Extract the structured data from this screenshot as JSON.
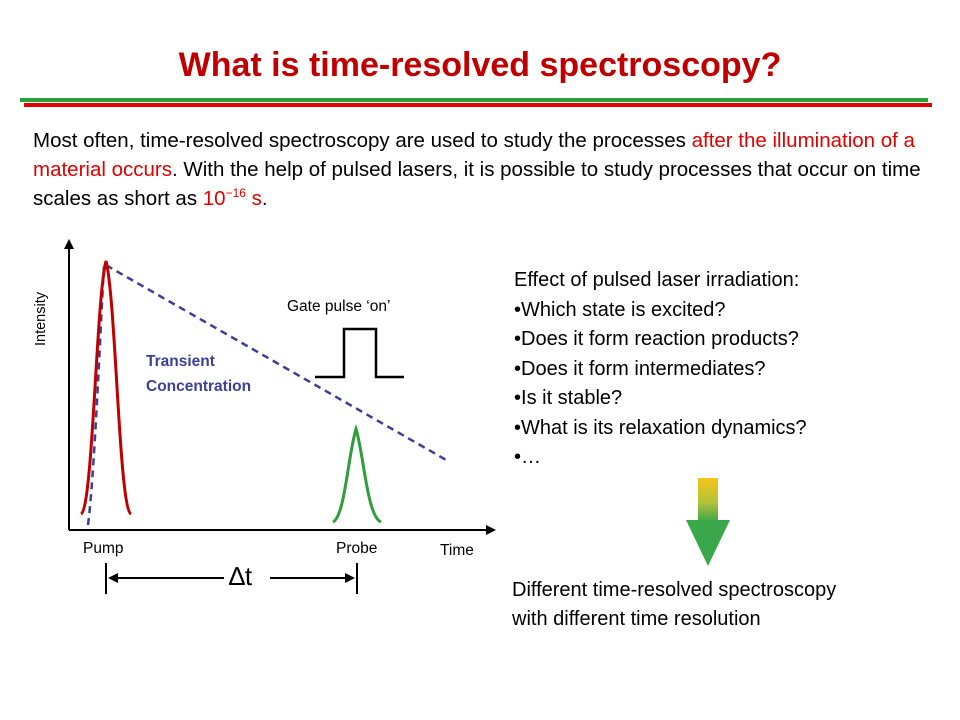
{
  "slide": {
    "title": "What is time-resolved spectroscopy?",
    "intro": {
      "part1": "Most often, time-resolved spectroscopy are used to study the processes ",
      "highlight1": "after the illumination of a material occurs",
      "part2": ". With the help of pulsed lasers, it is possible to study processes that occur on time scales as short as ",
      "exponent_base": "10",
      "exponent": "−16",
      "unit": " s",
      "end": "."
    }
  },
  "diagram": {
    "y_axis_label": "Intensity",
    "x_axis_label": "Time",
    "pump_label": "Pump",
    "probe_label": "Probe",
    "gate_label": "Gate pulse ‘on’",
    "transient_label_line1": "Transient",
    "transient_label_line2": "Concentration",
    "delay_label": "∆t",
    "colors": {
      "pump": "#c00000",
      "probe": "#2e9e3c",
      "transient": "#3b3f98",
      "arrow_top": "#f5c518",
      "arrow_bottom": "#3aa84a"
    }
  },
  "effects": {
    "heading": "Effect of pulsed laser irradiation:",
    "items": [
      "Which state is excited?",
      "Does it form reaction products?",
      "Does it form intermediates?",
      "Is it stable?",
      "What is its relaxation dynamics?",
      "…"
    ]
  },
  "conclusion": {
    "line1": "Different time-resolved spectroscopy",
    "line2": "with different time resolution"
  }
}
